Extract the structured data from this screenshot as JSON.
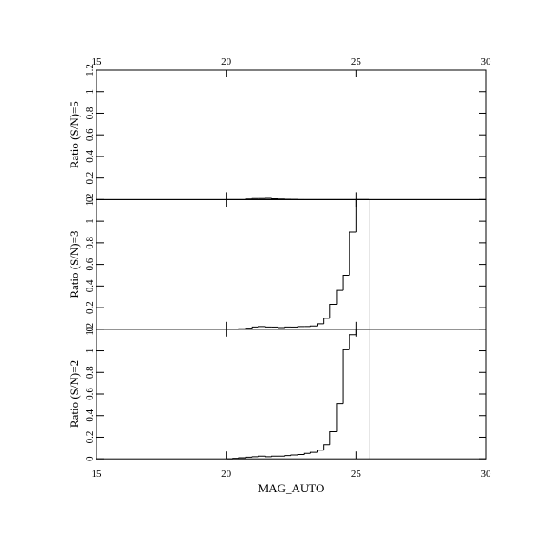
{
  "chart_data": [
    {
      "type": "histogram",
      "ylabel": "Ratio (S/N)=5",
      "bins": [
        20,
        20.25,
        20.5,
        20.75,
        21,
        21.25,
        21.5,
        21.75,
        22,
        22.25,
        22.5,
        22.75,
        23,
        23.25,
        23.5,
        23.75,
        24,
        24.25,
        24.5,
        24.75,
        25,
        25.25,
        25.5
      ],
      "values": [
        0,
        0,
        0,
        0.005,
        0.01,
        0.01,
        0.012,
        0.008,
        0.005,
        0.003,
        0.002,
        0,
        0,
        0,
        0,
        0,
        0,
        0,
        0,
        0,
        0,
        0
      ],
      "color": "#000000",
      "xlim": [
        15,
        30
      ],
      "xticks": [
        15,
        20,
        25,
        30
      ],
      "ylim": [
        0,
        1.2
      ],
      "yticks": [
        0,
        0.2,
        0.4,
        0.6,
        0.8,
        1,
        1.2
      ],
      "xtick_labels": "top"
    },
    {
      "type": "histogram",
      "ylabel": "Ratio (S/N)=3",
      "bins": [
        20,
        20.25,
        20.5,
        20.75,
        21,
        21.25,
        21.5,
        21.75,
        22,
        22.25,
        22.5,
        22.75,
        23,
        23.25,
        23.5,
        23.75,
        24,
        24.25,
        24.5,
        24.75,
        25,
        25.25,
        25.5
      ],
      "values": [
        0,
        0,
        0.005,
        0.01,
        0.02,
        0.025,
        0.02,
        0.02,
        0.015,
        0.02,
        0.02,
        0.025,
        0.025,
        0.03,
        0.05,
        0.1,
        0.23,
        0.36,
        0.5,
        0.9,
        1.2,
        1.2
      ],
      "color": "#000000",
      "xlim": [
        15,
        30
      ],
      "xticks": [
        15,
        20,
        25,
        30
      ],
      "ylim": [
        0,
        1.2
      ],
      "yticks": [
        0,
        0.2,
        0.4,
        0.6,
        0.8,
        1,
        1.2
      ]
    },
    {
      "type": "histogram",
      "ylabel": "Ratio (S/N)=2",
      "xlabel": "MAG_AUTO",
      "bins": [
        20,
        20.25,
        20.5,
        20.75,
        21,
        21.25,
        21.5,
        21.75,
        22,
        22.25,
        22.5,
        22.75,
        23,
        23.25,
        23.5,
        23.75,
        24,
        24.25,
        24.5,
        24.75,
        25,
        25.25,
        25.5
      ],
      "values": [
        0,
        0.005,
        0.01,
        0.015,
        0.02,
        0.025,
        0.02,
        0.025,
        0.025,
        0.03,
        0.035,
        0.04,
        0.05,
        0.06,
        0.08,
        0.13,
        0.25,
        0.51,
        1.01,
        1.15,
        1.2,
        1.2
      ],
      "color": "#000000",
      "xlim": [
        15,
        30
      ],
      "xticks": [
        15,
        20,
        25,
        30
      ],
      "ylim": [
        0,
        1.2
      ],
      "yticks": [
        0,
        0.2,
        0.4,
        0.6,
        0.8,
        1,
        1.2
      ],
      "xtick_labels": "bottom"
    }
  ]
}
